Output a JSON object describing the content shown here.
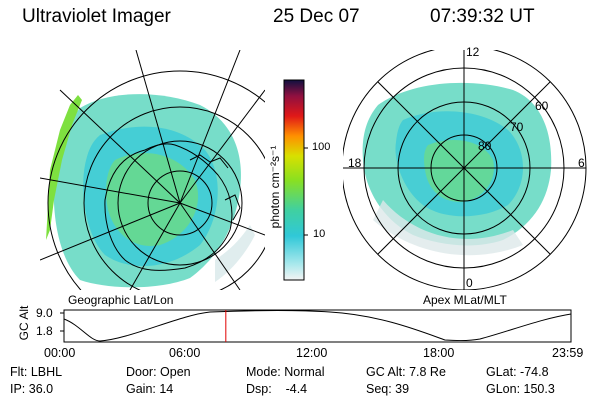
{
  "header": {
    "instrument": "Ultraviolet Imager",
    "date": "25 Dec 07",
    "time": "07:39:32 UT"
  },
  "left_panel": {
    "caption": "Geographic Lat/Lon"
  },
  "right_panel": {
    "caption": "Apex MLat/MLT",
    "mlt_labels": {
      "top": "12",
      "bottom": "0",
      "left": "18",
      "right": "6"
    },
    "lat_labels": [
      "80",
      "70",
      "60"
    ]
  },
  "colorbar": {
    "unit_label": "photon cm⁻²s⁻¹",
    "ticks": [
      "100",
      "10"
    ]
  },
  "altitude_plot": {
    "axis_label": "GC Alt",
    "yticks": [
      "9.0",
      "1.8"
    ],
    "xticks": [
      "00:00",
      "06:00",
      "12:00",
      "18:00",
      "23:59"
    ],
    "marker_time_hours": 7.66,
    "marker_color": "#e00000"
  },
  "info": {
    "row1": {
      "flt": "Flt: LBHL",
      "door": "Door: Open",
      "mode": "Mode: Normal",
      "gc_alt": "GC Alt: 7.8 Re",
      "glat": "GLat: -74.8"
    },
    "row2": {
      "ip": "IP: 36.0",
      "gain": "Gain: 14",
      "dsp": "Dsp:    -4.4",
      "seq": "Seq: 39",
      "glon": "GLon: 150.3"
    }
  }
}
